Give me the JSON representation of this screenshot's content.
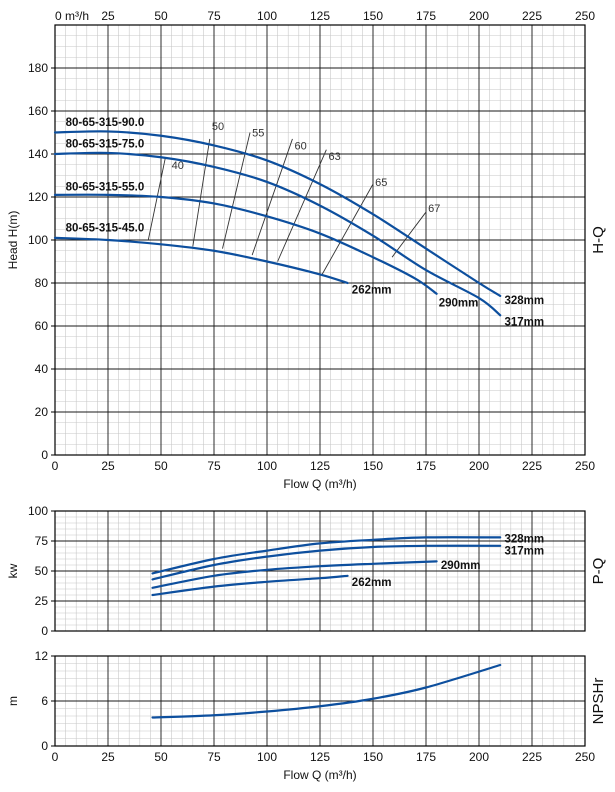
{
  "colors": {
    "curve": "#0d4f9e",
    "minor_grid": "#c8c8c8",
    "major_grid": "#1a1a1a",
    "axis": "#000000",
    "text": "#111111",
    "efficiency": "#333333"
  },
  "top_axis": {
    "unit_label": "m³/h",
    "ticks": [
      "0",
      "25",
      "50",
      "75",
      "100",
      "125",
      "150",
      "175",
      "200",
      "225",
      "250"
    ]
  },
  "chart_data": [
    {
      "id": "hq",
      "type": "line",
      "side_label": "H-Q",
      "ylabel": "Head H(m)",
      "xlabel": "Flow Q (m³/h)",
      "xlim": [
        0,
        250
      ],
      "ylim": [
        0,
        200
      ],
      "x_ticks": [
        "0",
        "25",
        "50",
        "75",
        "100",
        "125",
        "150",
        "175",
        "200",
        "225",
        "250"
      ],
      "y_ticks": [
        "0",
        "20",
        "40",
        "60",
        "80",
        "100",
        "120",
        "140",
        "160",
        "180"
      ],
      "series": [
        {
          "name": "328mm",
          "x": [
            0,
            25,
            50,
            75,
            100,
            125,
            150,
            175,
            200,
            210
          ],
          "y": [
            150,
            150.5,
            148.5,
            144,
            137,
            126,
            112,
            96,
            80,
            74
          ]
        },
        {
          "name": "317mm",
          "x": [
            0,
            25,
            50,
            75,
            100,
            125,
            150,
            175,
            200,
            210
          ],
          "y": [
            140,
            140.5,
            138.5,
            134,
            127,
            116,
            102,
            86,
            73,
            65
          ]
        },
        {
          "name": "290mm",
          "x": [
            0,
            25,
            50,
            75,
            100,
            125,
            150,
            170,
            180
          ],
          "y": [
            121,
            121,
            120,
            117,
            111,
            103,
            92,
            82,
            75
          ]
        },
        {
          "name": "262mm",
          "x": [
            0,
            25,
            50,
            75,
            100,
            125,
            138
          ],
          "y": [
            101,
            100,
            98,
            95,
            90,
            84,
            80
          ]
        }
      ],
      "model_labels": [
        {
          "text": "80-65-315-90.0",
          "x": 5,
          "y": 153
        },
        {
          "text": "80-65-315-75.0",
          "x": 5,
          "y": 143
        },
        {
          "text": "80-65-315-55.0",
          "x": 5,
          "y": 123
        },
        {
          "text": "80-65-315-45.0",
          "x": 5,
          "y": 104
        }
      ],
      "efficiency_lines": [
        {
          "label": "40",
          "x": [
            44,
            52
          ],
          "y": [
            100,
            138
          ],
          "label_at": [
            55,
            135
          ]
        },
        {
          "label": "50",
          "x": [
            65,
            73
          ],
          "y": [
            97,
            147
          ],
          "label_at": [
            74,
            153
          ]
        },
        {
          "label": "55",
          "x": [
            79,
            92
          ],
          "y": [
            96,
            150
          ],
          "label_at": [
            93,
            150
          ]
        },
        {
          "label": "60",
          "x": [
            93,
            112
          ],
          "y": [
            93,
            147
          ],
          "label_at": [
            113,
            144
          ]
        },
        {
          "label": "63",
          "x": [
            105,
            128
          ],
          "y": [
            90,
            142
          ],
          "label_at": [
            129,
            139
          ]
        },
        {
          "label": "65",
          "x": [
            126,
            150
          ],
          "y": [
            84,
            126
          ],
          "label_at": [
            151,
            127
          ]
        },
        {
          "label": "67",
          "x": [
            159,
            175
          ],
          "y": [
            92,
            113
          ],
          "label_at": [
            176,
            115
          ]
        }
      ],
      "end_labels": [
        {
          "text": "262mm",
          "x": 140,
          "y": 77
        },
        {
          "text": "290mm",
          "x": 181,
          "y": 71
        },
        {
          "text": "328mm",
          "x": 212,
          "y": 72
        },
        {
          "text": "317mm",
          "x": 212,
          "y": 62
        }
      ]
    },
    {
      "id": "pq",
      "type": "line",
      "side_label": "P-Q",
      "ylabel": "kw",
      "xlabel": "",
      "xlim": [
        0,
        250
      ],
      "ylim": [
        0,
        100
      ],
      "y_ticks": [
        "0",
        "25",
        "50",
        "75",
        "100"
      ],
      "series": [
        {
          "name": "328mm",
          "x": [
            46,
            75,
            100,
            125,
            150,
            175,
            210
          ],
          "y": [
            48,
            60,
            67,
            73,
            76,
            78,
            78
          ]
        },
        {
          "name": "317mm",
          "x": [
            46,
            75,
            100,
            125,
            150,
            175,
            210
          ],
          "y": [
            43,
            55,
            62,
            67,
            70,
            71,
            71
          ]
        },
        {
          "name": "290mm",
          "x": [
            46,
            75,
            100,
            125,
            150,
            180
          ],
          "y": [
            36,
            46,
            51,
            54,
            56,
            58
          ]
        },
        {
          "name": "262mm",
          "x": [
            46,
            75,
            100,
            125,
            138
          ],
          "y": [
            30,
            37,
            41,
            44,
            46
          ]
        }
      ],
      "end_labels": [
        {
          "text": "328mm",
          "x": 212,
          "y": 77
        },
        {
          "text": "317mm",
          "x": 212,
          "y": 67
        },
        {
          "text": "290mm",
          "x": 182,
          "y": 55
        },
        {
          "text": "262mm",
          "x": 140,
          "y": 41
        }
      ]
    },
    {
      "id": "npsh",
      "type": "line",
      "side_label": "NPSHr",
      "ylabel": "m",
      "xlabel": "Flow Q (m³/h)",
      "xlim": [
        0,
        250
      ],
      "ylim": [
        0,
        12
      ],
      "x_ticks": [
        "0",
        "25",
        "50",
        "75",
        "100",
        "125",
        "150",
        "175",
        "200",
        "225",
        "250"
      ],
      "y_ticks": [
        "0",
        "6",
        "12"
      ],
      "series": [
        {
          "name": "",
          "x": [
            46,
            75,
            100,
            125,
            150,
            175,
            210
          ],
          "y": [
            3.8,
            4.1,
            4.6,
            5.3,
            6.3,
            7.8,
            10.8
          ]
        }
      ]
    }
  ]
}
